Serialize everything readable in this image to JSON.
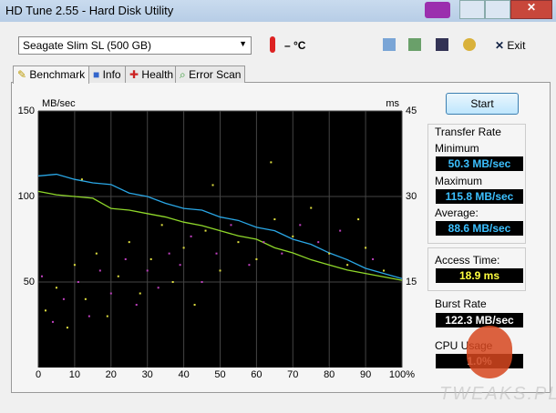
{
  "window": {
    "title": "HD Tune 2.55 - Hard Disk Utility"
  },
  "toolbar": {
    "drive": "Seagate Slim  SL (500 GB)",
    "temperature": "– °C",
    "exit": "Exit"
  },
  "tabs": [
    "Benchmark",
    "Info",
    "Health",
    "Error Scan"
  ],
  "chart_data": {
    "type": "line",
    "y_unit": "MB/sec",
    "y2_unit": "ms",
    "xlim": [
      0,
      100
    ],
    "ylim": [
      0,
      150
    ],
    "y2lim": [
      0,
      45
    ],
    "xticks": [
      0,
      10,
      20,
      30,
      40,
      50,
      60,
      70,
      80,
      90,
      {
        "value": 100,
        "label": "100%"
      }
    ],
    "yticks": [
      50,
      100,
      150
    ],
    "y2ticks": [
      15,
      30,
      45
    ],
    "grid": true,
    "x": [
      0,
      5,
      10,
      15,
      20,
      25,
      30,
      35,
      40,
      45,
      50,
      55,
      60,
      65,
      70,
      75,
      80,
      85,
      90,
      95,
      100
    ],
    "series": [
      {
        "color": "#2aa7e6",
        "values": [
          112,
          113,
          110,
          108,
          107,
          102,
          100,
          96,
          93,
          92,
          88,
          86,
          82,
          80,
          75,
          72,
          67,
          63,
          58,
          55,
          52
        ]
      },
      {
        "color": "#8fd82a",
        "values": [
          103,
          101,
          100,
          99,
          93,
          92,
          90,
          88,
          85,
          83,
          80,
          77,
          75,
          70,
          67,
          63,
          60,
          57,
          55,
          53,
          51
        ]
      }
    ],
    "scatter": [
      {
        "color": "#e0e040",
        "axis": "y2",
        "x": [
          2,
          5,
          8,
          10,
          13,
          16,
          19,
          22,
          25,
          28,
          31,
          34,
          37,
          40,
          43,
          46,
          50,
          55,
          60,
          65,
          70,
          75,
          80,
          85,
          90,
          95,
          12,
          48,
          64,
          88
        ],
        "values": [
          10,
          14,
          7,
          18,
          12,
          20,
          9,
          16,
          22,
          13,
          19,
          25,
          15,
          21,
          11,
          24,
          17,
          22,
          19,
          26,
          23,
          28,
          20,
          18,
          21,
          17,
          33,
          32,
          36,
          26
        ]
      },
      {
        "color": "#c040c0",
        "axis": "y2",
        "x": [
          1,
          4,
          7,
          11,
          14,
          17,
          20,
          24,
          27,
          30,
          33,
          36,
          39,
          42,
          45,
          49,
          53,
          58,
          62,
          67,
          72,
          77,
          83,
          92
        ],
        "values": [
          16,
          8,
          12,
          15,
          9,
          17,
          13,
          19,
          11,
          17,
          14,
          20,
          18,
          23,
          15,
          20,
          25,
          18,
          22,
          20,
          25,
          22,
          24,
          19
        ]
      }
    ]
  },
  "panel": {
    "start": "Start",
    "transfer_rate": "Transfer Rate",
    "minimum_label": "Minimum",
    "minimum": "50.3 MB/sec",
    "maximum_label": "Maximum",
    "maximum": "115.8 MB/sec",
    "average_label": "Average:",
    "average": "88.6 MB/sec",
    "access_label": "Access Time:",
    "access": "18.9 ms",
    "burst_label": "Burst Rate",
    "burst": "122.3 MB/sec",
    "cpu_label": "CPU Usage",
    "cpu": "1.0%"
  },
  "watermark": "TWEAKS.PL"
}
